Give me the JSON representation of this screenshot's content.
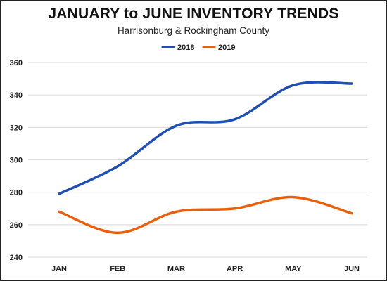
{
  "chart_data": {
    "type": "line",
    "title": "JANUARY to JUNE INVENTORY TRENDS",
    "subtitle": "Harrisonburg & Rockingham County",
    "xlabel": "",
    "ylabel": "",
    "categories": [
      "JAN",
      "FEB",
      "MAR",
      "APR",
      "MAY",
      "JUN"
    ],
    "ylim": [
      240,
      360
    ],
    "yticks": [
      240,
      260,
      280,
      300,
      320,
      340,
      360
    ],
    "grid": true,
    "legend_position": "top-center",
    "series": [
      {
        "name": "2018",
        "color": "#1F4EB4",
        "values": [
          279,
          296,
          321,
          325,
          346,
          347
        ]
      },
      {
        "name": "2019",
        "color": "#E8600C",
        "values": [
          268,
          255,
          268,
          270,
          277,
          267
        ]
      }
    ]
  }
}
